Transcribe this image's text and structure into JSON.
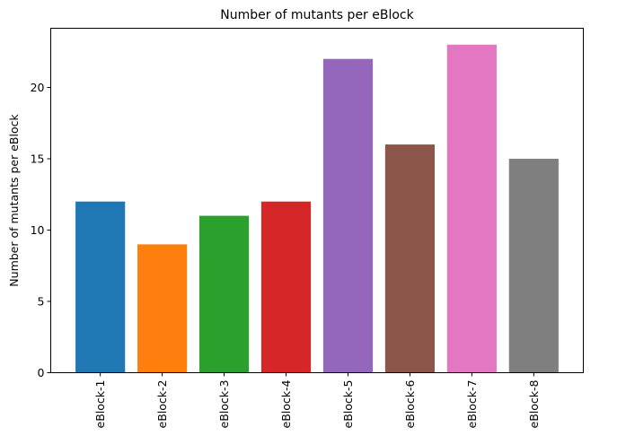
{
  "chart_data": {
    "type": "bar",
    "title": "Number of mutants per eBlock",
    "xlabel": "",
    "ylabel": "Number of mutants per eBlock",
    "categories": [
      "eBlock-1",
      "eBlock-2",
      "eBlock-3",
      "eBlock-4",
      "eBlock-5",
      "eBlock-6",
      "eBlock-7",
      "eBlock-8"
    ],
    "values": [
      12,
      9,
      11,
      12,
      22,
      16,
      23,
      15
    ],
    "colors": [
      "#1f77b4",
      "#ff7f0e",
      "#2ca02c",
      "#d62728",
      "#9467bd",
      "#8c564b",
      "#e377c2",
      "#7f7f7f"
    ],
    "ylim": [
      0,
      24.15
    ],
    "yticks": [
      0,
      5,
      10,
      15,
      20
    ],
    "grid": false,
    "legend": "none"
  }
}
